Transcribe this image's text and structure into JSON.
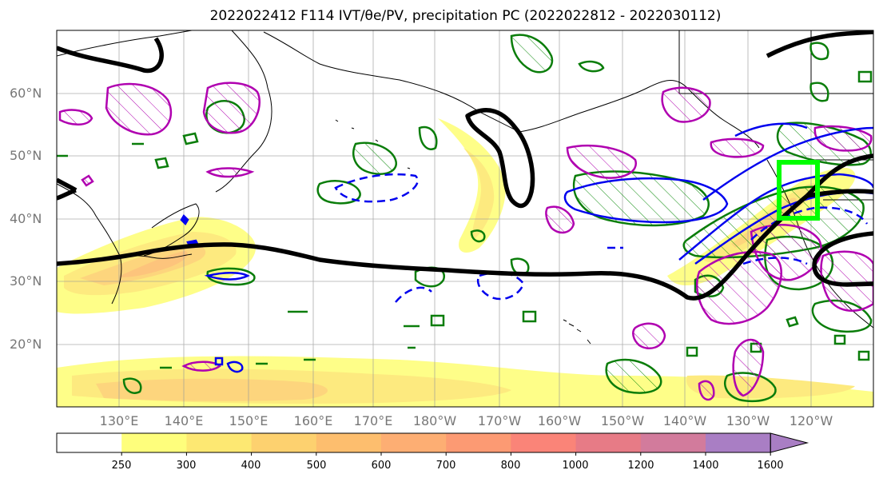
{
  "title": "2022022412 F114 IVT/θe/PV, precipitation PC (2022022812 - 2022030112)",
  "lat_labels": [
    "60°N",
    "50°N",
    "40°N",
    "30°N",
    "20°N"
  ],
  "lon_labels": [
    "130°E",
    "140°E",
    "150°E",
    "160°E",
    "170°E",
    "180°W",
    "170°W",
    "160°W",
    "150°W",
    "140°W",
    "130°W",
    "120°W"
  ],
  "colorbar": {
    "ticks": [
      "250",
      "300",
      "400",
      "500",
      "600",
      "700",
      "800",
      "1000",
      "1200",
      "1400",
      "1600"
    ],
    "colors": [
      "#ffffff",
      "#fefe7c",
      "#fde872",
      "#fdd16f",
      "#fdbe6e",
      "#fdae73",
      "#fc9a73",
      "#fa8478",
      "#e77b86",
      "#d27b9c",
      "#a97ec4"
    ],
    "extend": "max"
  },
  "legend_colors": {
    "precip_pc_positive": "#00aa00",
    "precip_pc_negative": "#0b7a0b",
    "pv_positive": "#b000b0",
    "theta_e": "#0000ff",
    "ivt_max_contour": "#000000",
    "highlight_box": "#00ff00"
  }
}
